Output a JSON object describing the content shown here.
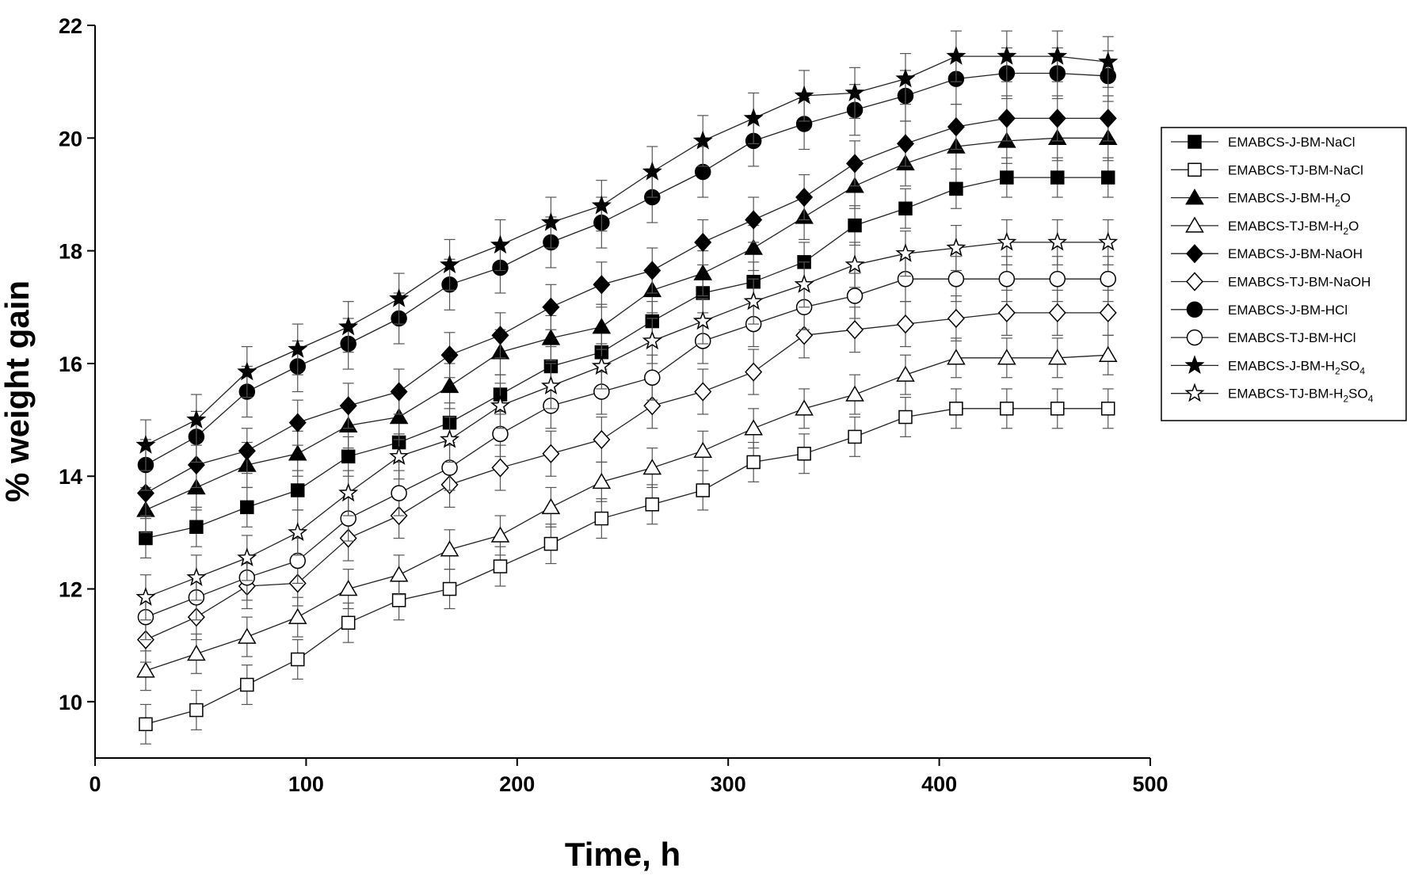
{
  "chart_data": {
    "type": "line",
    "title": "",
    "xlabel": "Time, h",
    "ylabel": "% weight gain",
    "xlim": [
      0,
      500
    ],
    "ylim": [
      9,
      22
    ],
    "xticks": [
      0,
      100,
      200,
      300,
      400,
      500
    ],
    "yticks": [
      10,
      12,
      14,
      16,
      18,
      20,
      22
    ],
    "grid": false,
    "legend_position": "right",
    "error_bars": true,
    "series": [
      {
        "name": "EMABCS-J-BM-NaCl",
        "label_main": "EMABCS-J-BM-NaCl",
        "label_sub": "",
        "label_tail": "",
        "marker": "square",
        "filled": true,
        "x": [
          24,
          48,
          72,
          96,
          120,
          144,
          168,
          192,
          216,
          240,
          264,
          288,
          312,
          336,
          360,
          384,
          408,
          432,
          456,
          480
        ],
        "y": [
          12.9,
          13.1,
          13.45,
          13.75,
          14.35,
          14.6,
          14.95,
          15.45,
          15.95,
          16.2,
          16.75,
          17.25,
          17.45,
          17.8,
          18.45,
          18.75,
          19.1,
          19.3,
          19.3,
          19.3
        ],
        "err": 0.35
      },
      {
        "name": "EMABCS-TJ-BM-NaCl",
        "label_main": "EMABCS-TJ-BM-NaCl",
        "label_sub": "",
        "label_tail": "",
        "marker": "square",
        "filled": false,
        "x": [
          24,
          48,
          72,
          96,
          120,
          144,
          168,
          192,
          216,
          240,
          264,
          288,
          312,
          336,
          360,
          384,
          408,
          432,
          456,
          480
        ],
        "y": [
          9.6,
          9.85,
          10.3,
          10.75,
          11.4,
          11.8,
          12.0,
          12.4,
          12.8,
          13.25,
          13.5,
          13.75,
          14.25,
          14.4,
          14.7,
          15.05,
          15.2,
          15.2,
          15.2,
          15.2
        ],
        "err": 0.35
      },
      {
        "name": "EMABCS-J-BM-H2O",
        "label_main": "EMABCS-J-BM-H",
        "label_sub": "2",
        "label_tail": "O",
        "marker": "triangle",
        "filled": true,
        "x": [
          24,
          48,
          72,
          96,
          120,
          144,
          168,
          192,
          216,
          240,
          264,
          288,
          312,
          336,
          360,
          384,
          408,
          432,
          456,
          480
        ],
        "y": [
          13.4,
          13.8,
          14.2,
          14.4,
          14.9,
          15.05,
          15.6,
          16.2,
          16.45,
          16.65,
          17.3,
          17.6,
          18.05,
          18.6,
          19.15,
          19.55,
          19.85,
          19.95,
          20.0,
          20.0
        ],
        "err": 0.4
      },
      {
        "name": "EMABCS-TJ-BM-H2O",
        "label_main": "EMABCS-TJ-BM-H",
        "label_sub": "2",
        "label_tail": "O",
        "marker": "triangle",
        "filled": false,
        "x": [
          24,
          48,
          72,
          96,
          120,
          144,
          168,
          192,
          216,
          240,
          264,
          288,
          312,
          336,
          360,
          384,
          408,
          432,
          456,
          480
        ],
        "y": [
          10.55,
          10.85,
          11.15,
          11.5,
          12.0,
          12.25,
          12.7,
          12.95,
          13.45,
          13.9,
          14.15,
          14.45,
          14.85,
          15.2,
          15.45,
          15.8,
          16.1,
          16.1,
          16.1,
          16.15
        ],
        "err": 0.35
      },
      {
        "name": "EMABCS-J-BM-NaOH",
        "label_main": "EMABCS-J-BM-NaOH",
        "label_sub": "",
        "label_tail": "",
        "marker": "diamond",
        "filled": true,
        "x": [
          24,
          48,
          72,
          96,
          120,
          144,
          168,
          192,
          216,
          240,
          264,
          288,
          312,
          336,
          360,
          384,
          408,
          432,
          456,
          480
        ],
        "y": [
          13.7,
          14.2,
          14.45,
          14.95,
          15.25,
          15.5,
          16.15,
          16.5,
          17.0,
          17.4,
          17.65,
          18.15,
          18.55,
          18.95,
          19.55,
          19.9,
          20.2,
          20.35,
          20.35,
          20.35
        ],
        "err": 0.4
      },
      {
        "name": "EMABCS-TJ-BM-NaOH",
        "label_main": "EMABCS-TJ-BM-NaOH",
        "label_sub": "",
        "label_tail": "",
        "marker": "diamond",
        "filled": false,
        "x": [
          24,
          48,
          72,
          96,
          120,
          144,
          168,
          192,
          216,
          240,
          264,
          288,
          312,
          336,
          360,
          384,
          408,
          432,
          456,
          480
        ],
        "y": [
          11.1,
          11.5,
          12.05,
          12.1,
          12.9,
          13.3,
          13.85,
          14.15,
          14.4,
          14.65,
          15.25,
          15.5,
          15.85,
          16.5,
          16.6,
          16.7,
          16.8,
          16.9,
          16.9,
          16.9
        ],
        "err": 0.4
      },
      {
        "name": "EMABCS-J-BM-HCl",
        "label_main": "EMABCS-J-BM-HCl",
        "label_sub": "",
        "label_tail": "",
        "marker": "circle",
        "filled": true,
        "x": [
          24,
          48,
          72,
          96,
          120,
          144,
          168,
          192,
          216,
          240,
          264,
          288,
          312,
          336,
          360,
          384,
          408,
          432,
          456,
          480
        ],
        "y": [
          14.2,
          14.7,
          15.5,
          15.95,
          16.35,
          16.8,
          17.4,
          17.7,
          18.15,
          18.5,
          18.95,
          19.4,
          19.95,
          20.25,
          20.5,
          20.75,
          21.05,
          21.15,
          21.15,
          21.1
        ],
        "err": 0.45
      },
      {
        "name": "EMABCS-TJ-BM-HCl",
        "label_main": "EMABCS-TJ-BM-HCl",
        "label_sub": "",
        "label_tail": "",
        "marker": "circle",
        "filled": false,
        "x": [
          24,
          48,
          72,
          96,
          120,
          144,
          168,
          192,
          216,
          240,
          264,
          288,
          312,
          336,
          360,
          384,
          408,
          432,
          456,
          480
        ],
        "y": [
          11.5,
          11.85,
          12.2,
          12.5,
          13.25,
          13.7,
          14.15,
          14.75,
          15.25,
          15.5,
          15.75,
          16.4,
          16.7,
          17.0,
          17.2,
          17.5,
          17.5,
          17.5,
          17.5,
          17.5
        ],
        "err": 0.4
      },
      {
        "name": "EMABCS-J-BM-H2SO4",
        "label_main": "EMABCS-J-BM-H",
        "label_sub": "2",
        "label_tail": "SO4",
        "marker": "star",
        "filled": true,
        "x": [
          24,
          48,
          72,
          96,
          120,
          144,
          168,
          192,
          216,
          240,
          264,
          288,
          312,
          336,
          360,
          384,
          408,
          432,
          456,
          480
        ],
        "y": [
          14.55,
          15.0,
          15.85,
          16.25,
          16.65,
          17.15,
          17.75,
          18.1,
          18.5,
          18.8,
          19.4,
          19.95,
          20.35,
          20.75,
          20.8,
          21.05,
          21.45,
          21.45,
          21.45,
          21.35
        ],
        "err": 0.45
      },
      {
        "name": "EMABCS-TJ-BM-H2SO4",
        "label_main": "EMABCS-TJ-BM-H",
        "label_sub": "2",
        "label_tail": "SO4",
        "marker": "star",
        "filled": false,
        "x": [
          24,
          48,
          72,
          96,
          120,
          144,
          168,
          192,
          216,
          240,
          264,
          288,
          312,
          336,
          360,
          384,
          408,
          432,
          456,
          480
        ],
        "y": [
          11.85,
          12.2,
          12.55,
          13.0,
          13.7,
          14.35,
          14.65,
          15.25,
          15.6,
          15.95,
          16.4,
          16.75,
          17.1,
          17.4,
          17.75,
          17.95,
          18.05,
          18.15,
          18.15,
          18.15
        ],
        "err": 0.4
      }
    ]
  }
}
